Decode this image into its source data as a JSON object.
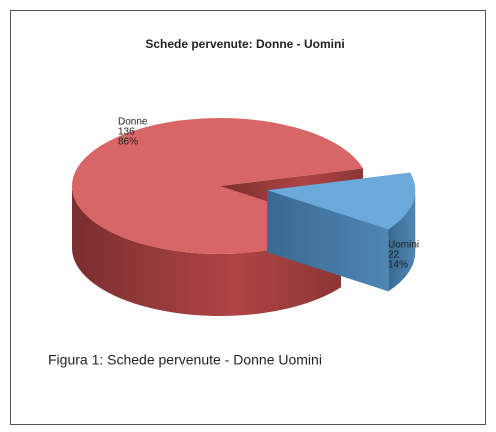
{
  "chart_data": {
    "type": "pie",
    "title": "Schede pervenute: Donne - Uomini",
    "series": [
      {
        "name": "Donne",
        "color": "#d96666",
        "values": 136,
        "percent_label": "86%"
      },
      {
        "name": "Uomini",
        "color": "#6aa9da",
        "values": 22,
        "percent_label": "14%"
      }
    ]
  },
  "caption": "Figura 1: Schede pervenute - Donne Uomini"
}
